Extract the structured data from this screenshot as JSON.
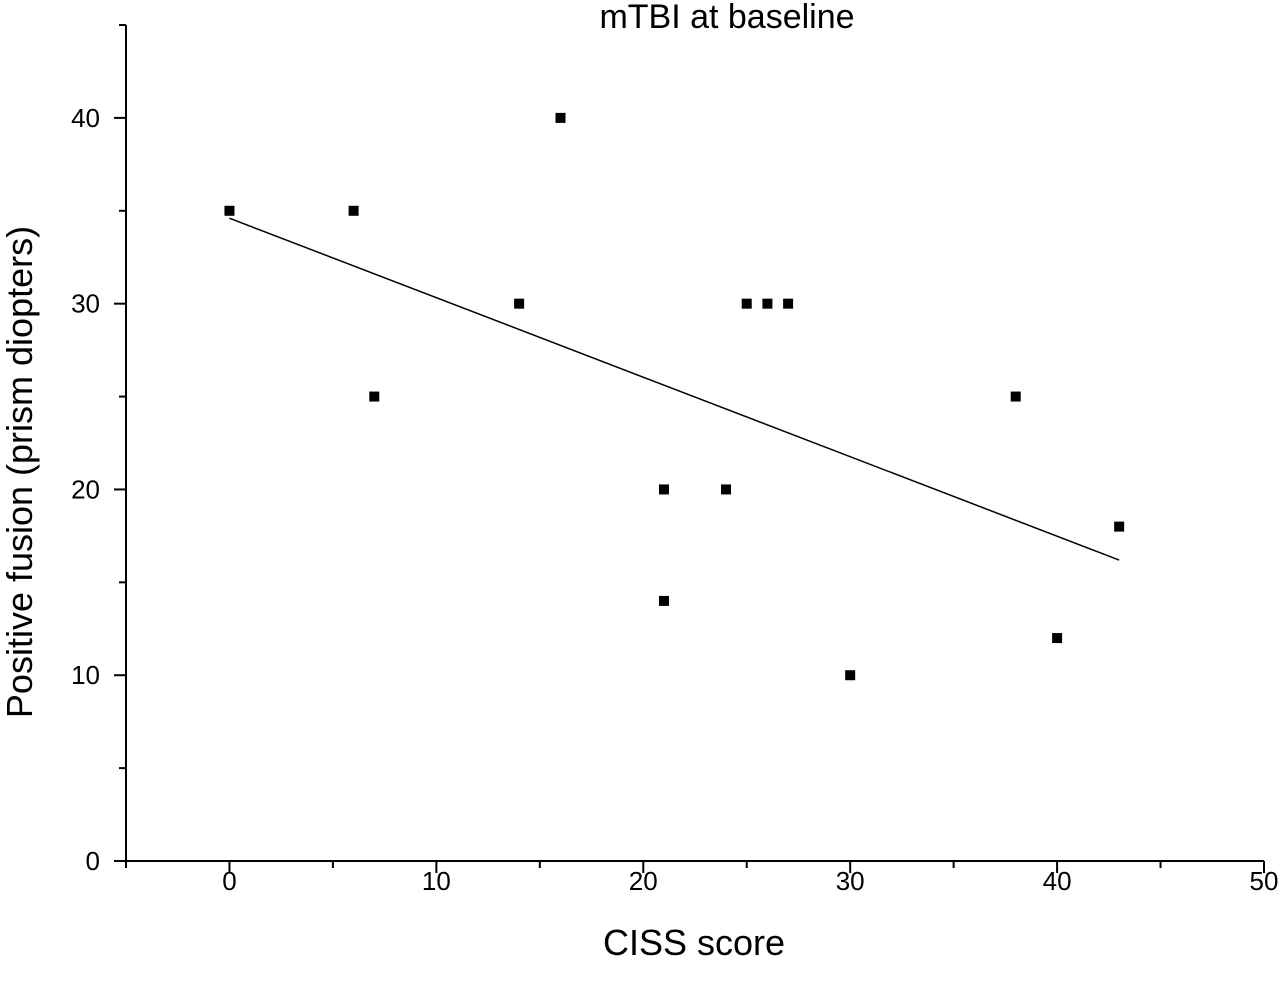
{
  "chart_data": {
    "type": "scatter",
    "title": "mTBI at baseline",
    "xlabel": "CISS score",
    "ylabel": "Positive fusion (prism diopters)",
    "xlim": [
      -5,
      50
    ],
    "ylim": [
      0,
      45
    ],
    "x_ticks_major": [
      0,
      10,
      20,
      30,
      40,
      50
    ],
    "x_ticks_minor": [
      -5,
      5,
      15,
      25,
      35,
      45
    ],
    "y_ticks_major": [
      0,
      10,
      20,
      30,
      40
    ],
    "y_ticks_minor": [
      5,
      15,
      25,
      35,
      45
    ],
    "grid": false,
    "series": [
      {
        "marker": "square",
        "color": "#000000",
        "points": [
          {
            "x": 0,
            "y": 35
          },
          {
            "x": 6,
            "y": 35
          },
          {
            "x": 7,
            "y": 25
          },
          {
            "x": 14,
            "y": 30
          },
          {
            "x": 16,
            "y": 40
          },
          {
            "x": 21,
            "y": 20
          },
          {
            "x": 21,
            "y": 14
          },
          {
            "x": 24,
            "y": 20
          },
          {
            "x": 25,
            "y": 30
          },
          {
            "x": 26,
            "y": 30
          },
          {
            "x": 27,
            "y": 30
          },
          {
            "x": 30,
            "y": 10
          },
          {
            "x": 38,
            "y": 25
          },
          {
            "x": 40,
            "y": 12
          },
          {
            "x": 43,
            "y": 18
          }
        ]
      }
    ],
    "fit_line": {
      "type": "linear",
      "color": "#000000",
      "points": [
        {
          "x": 0,
          "y": 34.6
        },
        {
          "x": 43,
          "y": 16.2
        }
      ]
    }
  }
}
